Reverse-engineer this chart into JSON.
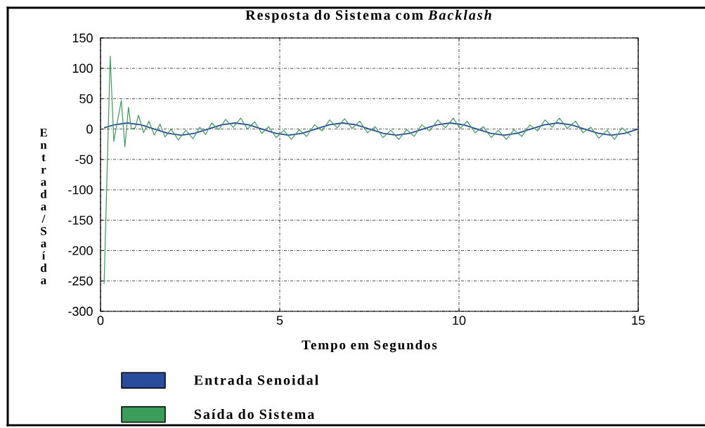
{
  "chart_data": {
    "type": "line",
    "title": "Resposta do Sistema com *Backlash*",
    "xlabel": "Tempo em Segundos",
    "ylabel": "Entrada/Saída",
    "xlim": [
      0,
      15
    ],
    "ylim": [
      -300,
      150
    ],
    "xticks": [
      0,
      5,
      10,
      15
    ],
    "yticks": [
      -300,
      -250,
      -200,
      -150,
      -100,
      -50,
      0,
      50,
      100,
      150
    ],
    "grid": true,
    "legend": "bottom left",
    "series": [
      {
        "name": "Entrada Senoidal",
        "color": "#2a4c9c",
        "x": [
          0.1,
          0.38,
          0.75,
          1.13,
          1.5,
          1.88,
          2.25,
          2.63,
          3,
          3.38,
          3.75,
          4.13,
          4.5,
          4.88,
          5.25,
          5.63,
          6,
          6.38,
          6.75,
          7.13,
          7.5,
          7.88,
          8.25,
          8.63,
          9,
          9.38,
          9.75,
          10.13,
          10.5,
          10.88,
          11.25,
          11.63,
          12,
          12.38,
          12.75,
          13.13,
          13.5,
          13.88,
          14.25,
          14.63,
          15
        ],
        "values": [
          2,
          7,
          10,
          7,
          0,
          -7,
          -10,
          -7,
          0,
          7,
          10,
          7,
          0,
          -7,
          -10,
          -7,
          0,
          7,
          10,
          7,
          0,
          -7,
          -10,
          -7,
          0,
          7,
          10,
          7,
          0,
          -7,
          -10,
          -7,
          0,
          7,
          10,
          7,
          0,
          -7,
          -10,
          -7,
          0
        ]
      },
      {
        "name": "Saída do Sistema",
        "color": "#3a9d5a",
        "x": [
          0.1,
          0.27,
          0.37,
          0.58,
          0.68,
          0.78,
          0.86,
          0.97,
          1.06,
          1.2,
          1.35,
          1.5,
          1.66,
          1.8,
          1.97,
          2.17,
          2.38,
          2.58,
          2.77,
          2.93,
          3.1,
          3.3,
          3.49,
          3.7,
          3.91,
          4.1,
          4.3,
          4.5,
          4.69,
          4.9,
          5.11,
          5.32,
          5.54,
          5.75,
          5.97,
          6.18,
          6.39,
          6.6,
          6.81,
          7.02,
          7.23,
          7.45,
          7.66,
          7.88,
          8.1,
          8.32,
          8.54,
          8.75,
          8.96,
          9.18,
          9.41,
          9.62,
          9.84,
          10.03,
          10.23,
          10.45,
          10.68,
          10.9,
          11.1,
          11.32,
          11.53,
          11.75,
          11.98,
          12.19,
          12.4,
          12.6,
          12.8,
          13.02,
          13.25,
          13.46,
          13.68,
          13.9,
          14.13,
          14.34,
          14.55,
          14.8
        ],
        "values": [
          -255,
          120,
          -20,
          47,
          -29,
          36,
          0,
          2,
          23,
          -6,
          13,
          -10,
          8,
          -13,
          0,
          -18,
          -2,
          -16,
          3,
          -9,
          10,
          -1,
          16,
          3,
          18,
          0,
          12,
          -7,
          4,
          -14,
          -2,
          -17,
          -1,
          -12,
          7,
          -3,
          15,
          2,
          17,
          1,
          13,
          -6,
          4,
          -14,
          -2,
          -17,
          -1,
          -12,
          7,
          -3,
          15,
          2,
          18,
          1,
          13,
          -6,
          4,
          -14,
          -2,
          -17,
          -1,
          -12,
          7,
          -3,
          15,
          3,
          18,
          1,
          13,
          -6,
          3,
          -15,
          -2,
          -17,
          2,
          -11
        ]
      }
    ]
  }
}
